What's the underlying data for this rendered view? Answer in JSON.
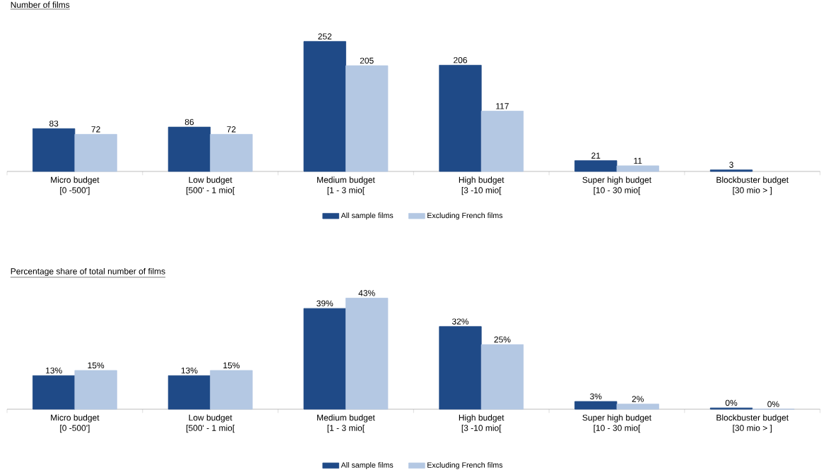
{
  "chart_data": [
    {
      "type": "bar",
      "title": "Number of films",
      "categories": [
        "Micro budget\n[0 -500']",
        "Low budget\n[500' - 1 mio[",
        "Medium budget\n[1 - 3 mio[",
        "High budget\n[3 -10 mio[",
        "Super high budget\n[10 - 30 mio[",
        "Blockbuster budget\n[30 mio > ]"
      ],
      "series": [
        {
          "name": "All sample films",
          "color": "#1f4a87",
          "values": [
            83,
            86,
            252,
            206,
            21,
            3
          ]
        },
        {
          "name": "Excluding French films",
          "color": "#b4c8e3",
          "values": [
            72,
            72,
            205,
            117,
            11,
            null
          ]
        }
      ],
      "data_labels": true,
      "legend": "bottom"
    },
    {
      "type": "bar",
      "title": "Percentage share of total number of films",
      "categories": [
        "Micro budget\n[0 -500']",
        "Low budget\n[500' - 1 mio[",
        "Medium budget\n[1 - 3 mio[",
        "High budget\n[3 -10 mio[",
        "Super high budget\n[10 - 30 mio[",
        "Blockbuster budget\n[30 mio > ]"
      ],
      "series": [
        {
          "name": "All sample films",
          "color": "#1f4a87",
          "values": [
            13,
            13,
            39,
            32,
            3,
            0.5
          ],
          "value_labels": [
            "13%",
            "13%",
            "39%",
            "32%",
            "3%",
            "0%"
          ]
        },
        {
          "name": "Excluding French films",
          "color": "#b4c8e3",
          "values": [
            15,
            15,
            43,
            25,
            2,
            0
          ],
          "value_labels": [
            "15%",
            "15%",
            "43%",
            "25%",
            "2%",
            "0%"
          ]
        }
      ],
      "legend": "bottom"
    }
  ]
}
